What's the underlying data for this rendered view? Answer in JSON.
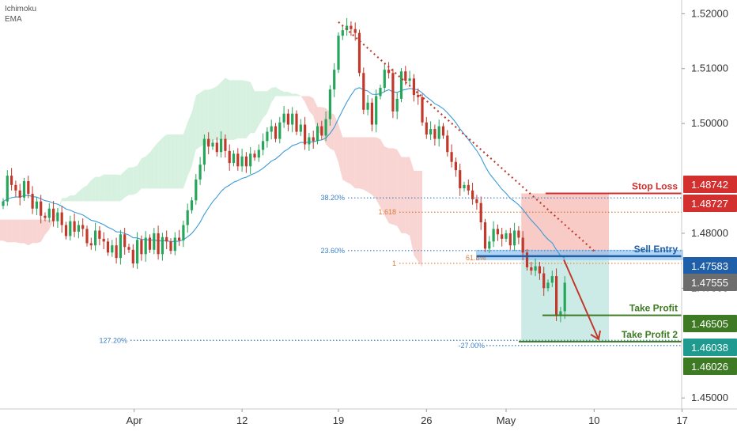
{
  "indicators": {
    "line1": "Ichimoku",
    "line2": "EMA"
  },
  "colors": {
    "bull": "#26a65b",
    "bear": "#c0392b",
    "ema": "#3a9ad9",
    "cloud_bear": "#f6c6c3",
    "cloud_bull": "#c9ecd6",
    "stop": "#d32f2f",
    "entry": "#1f5ea8",
    "tp": "#3d7a23",
    "tp2": "#1e9a8f",
    "grey": "#6d6d6d",
    "fib_blue": "#3a7fc4",
    "fib_orange": "#e07b39"
  },
  "chart_data": {
    "type": "candlestick",
    "ylim": [
      1.448,
      1.5225
    ],
    "yticks": [
      "1.52000",
      "1.51000",
      "1.50000",
      "1.48000",
      "1.47000",
      "1.45000"
    ],
    "ytick_values": [
      1.52,
      1.51,
      1.5,
      1.48,
      1.47,
      1.45
    ],
    "xticks": [
      "Apr",
      "12",
      "19",
      "26",
      "May",
      "10",
      "17"
    ],
    "xtick_bars": [
      32,
      57,
      80,
      101,
      120,
      141,
      162
    ],
    "close": [
      1.4858,
      1.4905,
      1.4888,
      1.4878,
      1.4865,
      1.4895,
      1.4872,
      1.4845,
      1.4858,
      1.4832,
      1.4828,
      1.4845,
      1.4822,
      1.4838,
      1.4815,
      1.4795,
      1.4822,
      1.4803,
      1.4815,
      1.4808,
      1.4782,
      1.4778,
      1.4805,
      1.479,
      1.4785,
      1.4765,
      1.4778,
      1.4755,
      1.4798,
      1.4775,
      1.477,
      1.4745,
      1.4788,
      1.4762,
      1.4792,
      1.477,
      1.48,
      1.4762,
      1.4793,
      1.4785,
      1.4768,
      1.4792,
      1.4787,
      1.4815,
      1.4842,
      1.486,
      1.4898,
      1.4925,
      1.4972,
      1.4958,
      1.4965,
      1.4948,
      1.4972,
      1.495,
      1.4928,
      1.4945,
      1.4922,
      1.494,
      1.4922,
      1.4945,
      1.4938,
      1.4952,
      1.4968,
      1.4985,
      1.4995,
      1.4972,
      1.5002,
      1.5018,
      1.4998,
      1.5018,
      1.4985,
      1.4998,
      1.4962,
      1.4975,
      1.4968,
      1.4995,
      1.4978,
      1.5008,
      1.5062,
      1.5098,
      1.516,
      1.517,
      1.5178,
      1.5172,
      1.5165,
      1.5092,
      1.5025,
      1.5038,
      1.4998,
      1.505,
      1.5065,
      1.5098,
      1.5092,
      1.5022,
      1.5045,
      1.5095,
      1.5078,
      1.5082,
      1.5052,
      1.5048,
      1.5002,
      1.498,
      1.499,
      1.4972,
      1.4995,
      1.4978,
      1.4948,
      1.493,
      1.4915,
      1.4882,
      1.4888,
      1.4878,
      1.4862,
      1.4855,
      1.482,
      1.4772,
      1.4785,
      1.4808,
      1.4798,
      1.479,
      1.48,
      1.4778,
      1.4805,
      1.4792,
      1.4765,
      1.4738,
      1.4732,
      1.474,
      1.4727,
      1.47,
      1.471,
      1.4722,
      1.465,
      1.4658,
      1.471
    ],
    "price_levels": {
      "stop_loss": 1.48727,
      "sell_entry": 1.47583,
      "take_profit": 1.46505,
      "take_profit_2": 1.46026
    },
    "axis_badges": [
      {
        "label": "1.48742",
        "value": 1.48742,
        "color": "#d32f2f"
      },
      {
        "label": "1.48727",
        "value": 1.48727,
        "color": "#d32f2f"
      },
      {
        "label": "1.47583",
        "value": 1.47583,
        "color": "#1f5ea8"
      },
      {
        "label": "1.47555",
        "value": 1.47555,
        "color": "#6d6d6d"
      },
      {
        "label": "1.46505",
        "value": 1.46505,
        "color": "#3d7a23"
      },
      {
        "label": "1.46038",
        "value": 1.46038,
        "color": "#1e9a8f"
      },
      {
        "label": "1.46026",
        "value": 1.46026,
        "color": "#3d7a23"
      }
    ],
    "annotations": {
      "stop_loss_label": "Stop Loss",
      "sell_entry_label": "Sell Entry",
      "take_profit_label": "Take Profit",
      "take_profit_2_label": "Take Profit 2"
    },
    "fib_levels": [
      {
        "label": "38.20%",
        "value": 1.48645,
        "style": "blue"
      },
      {
        "label": "1.618",
        "value": 1.48385,
        "style": "orange"
      },
      {
        "label": "23.60%",
        "value": 1.47685,
        "style": "blue"
      },
      {
        "label": "1",
        "value": 1.47452,
        "style": "orange"
      },
      {
        "label": "61.8%",
        "value": 1.47555,
        "style": "orange"
      },
      {
        "label": "127.20%",
        "value": 1.4605,
        "style": "blue"
      },
      {
        "label": "-27.00%",
        "value": 1.45955,
        "style": "blue"
      }
    ]
  }
}
